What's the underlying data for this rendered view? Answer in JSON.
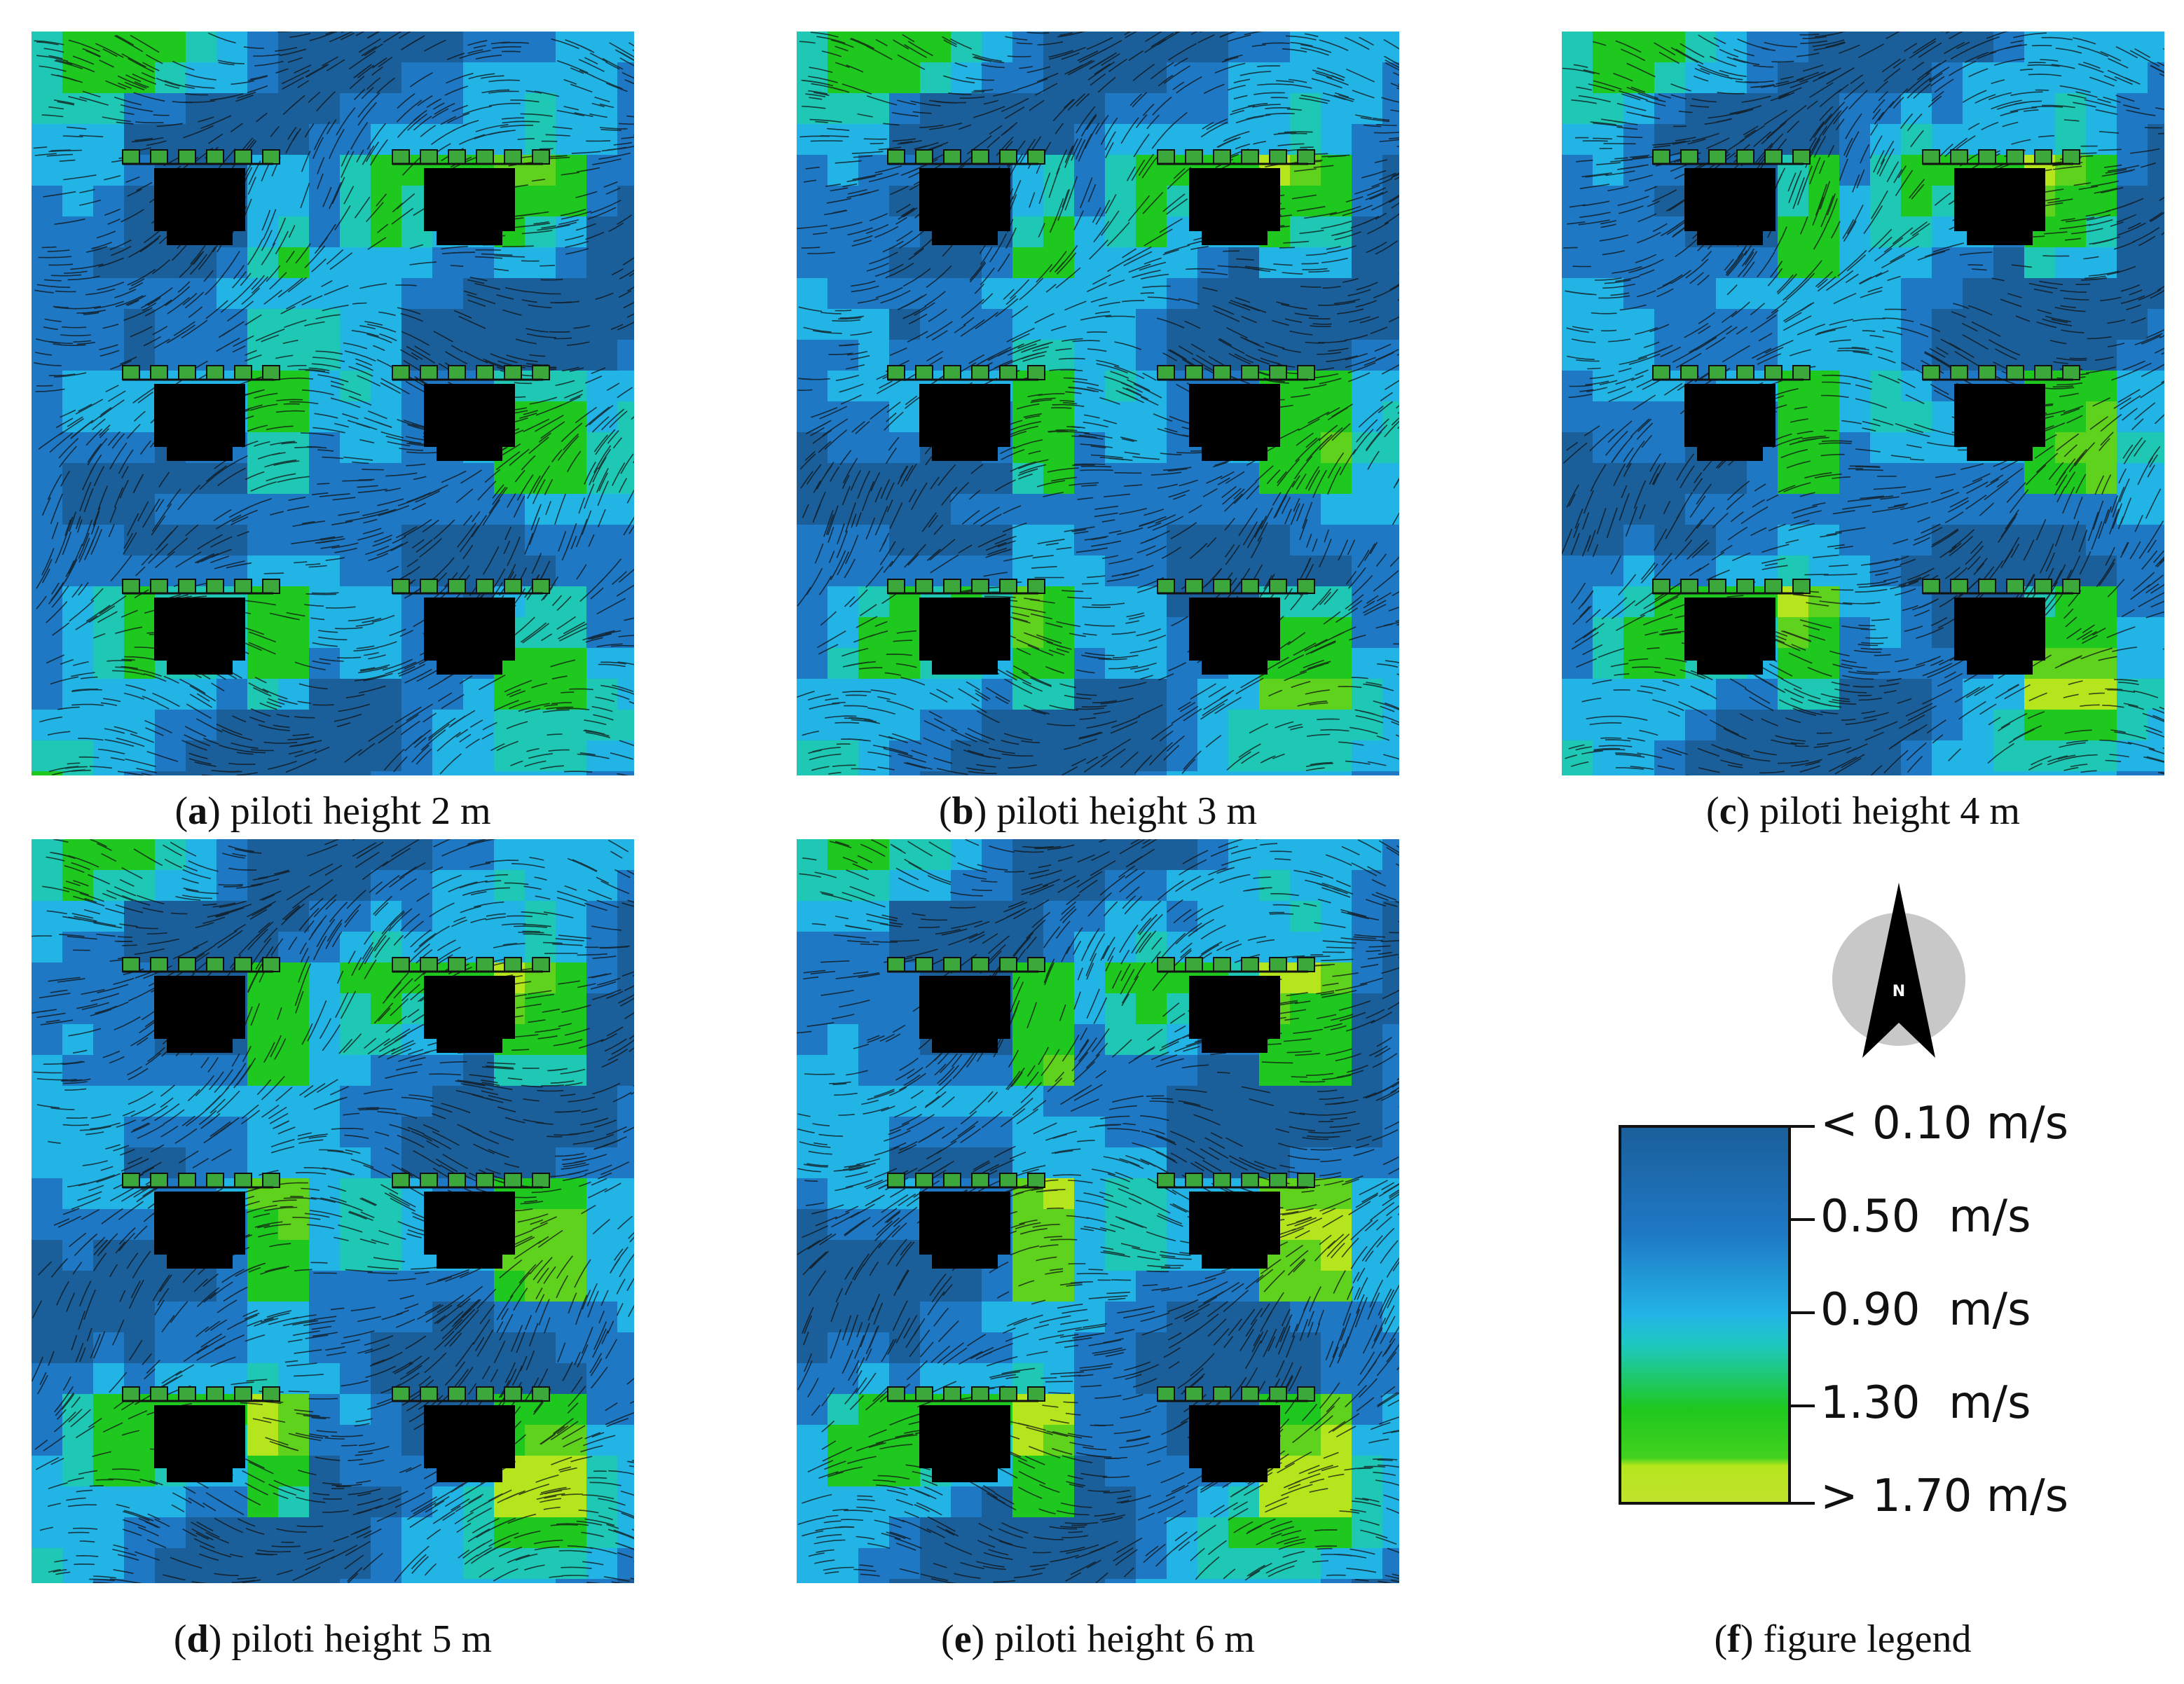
{
  "panels": [
    {
      "letter": "a",
      "caption": "piloti height 2 m",
      "piloti_height_m": 2
    },
    {
      "letter": "b",
      "caption": "piloti height 3 m",
      "piloti_height_m": 3
    },
    {
      "letter": "c",
      "caption": "piloti height 4 m",
      "piloti_height_m": 4
    },
    {
      "letter": "d",
      "caption": "piloti height 5 m",
      "piloti_height_m": 5
    },
    {
      "letter": "e",
      "caption": "piloti height 6 m",
      "piloti_height_m": 6
    }
  ],
  "legend": {
    "letter": "f",
    "caption": "figure legend",
    "compass_label": "N",
    "ticks": [
      "< 0.10 m/s",
      "0.50  m/s",
      "0.90  m/s",
      "1.30  m/s",
      "> 1.70 m/s"
    ],
    "colors": [
      "#1a5f9a",
      "#1e78c4",
      "#23b4e6",
      "#1ec81e",
      "#b5e61d"
    ]
  },
  "colors": {
    "building": "#000000",
    "slow": "#1a5f9a",
    "medium": "#23b4e6",
    "fast": "#1ec81e",
    "fastest": "#b5e61d",
    "streamline": "#111111",
    "compass_disc": "#c8c8c8"
  }
}
